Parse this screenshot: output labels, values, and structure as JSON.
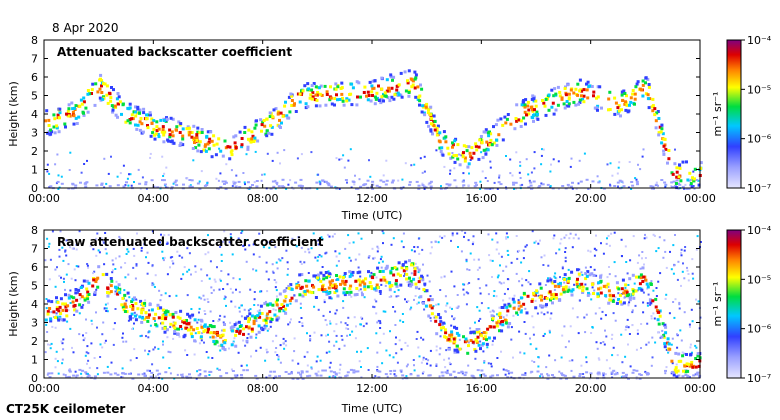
{
  "header": {
    "date": "8 Apr 2020"
  },
  "footer": {
    "instrument": "CT25K ceilometer"
  },
  "chart_data": [
    {
      "type": "heatmap",
      "title": "Attenuated backscatter coefficient",
      "xlabel": "Time (UTC)",
      "ylabel": "Height (km)",
      "xlim": [
        0,
        24
      ],
      "ylim": [
        0,
        8
      ],
      "x_tick_labels": [
        "00:00",
        "04:00",
        "08:00",
        "12:00",
        "16:00",
        "20:00",
        "00:00"
      ],
      "y_tick_labels": [
        "0",
        "1",
        "2",
        "3",
        "4",
        "5",
        "6",
        "7",
        "8"
      ],
      "colorbar": {
        "scale": "log",
        "min_exponent": -7,
        "max_exponent": -4,
        "unit_label": "m⁻¹ sr⁻¹",
        "tick_labels": [
          "10⁻⁴",
          "10⁻⁵",
          "10⁻⁶",
          "10⁻⁷"
        ]
      },
      "cloud_layer_km": [
        [
          0.0,
          3.6
        ],
        [
          1.0,
          4.0
        ],
        [
          2.0,
          5.5
        ],
        [
          3.0,
          4.0
        ],
        [
          4.0,
          3.4
        ],
        [
          5.0,
          3.0
        ],
        [
          6.0,
          2.5
        ],
        [
          6.8,
          2.2
        ],
        [
          8.6,
          4.0
        ],
        [
          9.3,
          5.0
        ],
        [
          12.0,
          5.3
        ],
        [
          13.5,
          5.8
        ],
        [
          14.5,
          2.5
        ],
        [
          15.5,
          1.8
        ],
        [
          16.5,
          3.0
        ],
        [
          17.5,
          4.2
        ],
        [
          18.5,
          4.7
        ],
        [
          19.5,
          5.3
        ],
        [
          21.0,
          4.6
        ],
        [
          22.0,
          5.5
        ],
        [
          23.0,
          0.8
        ],
        [
          24.0,
          0.8
        ]
      ],
      "noise_level": "low"
    },
    {
      "type": "heatmap",
      "title": "Raw attenuated backscatter coefficient",
      "xlabel": "Time (UTC)",
      "ylabel": "Height (km)",
      "xlim": [
        0,
        24
      ],
      "ylim": [
        0,
        8
      ],
      "x_tick_labels": [
        "00:00",
        "04:00",
        "08:00",
        "12:00",
        "16:00",
        "20:00",
        "00:00"
      ],
      "y_tick_labels": [
        "0",
        "1",
        "2",
        "3",
        "4",
        "5",
        "6",
        "7",
        "8"
      ],
      "colorbar": {
        "scale": "log",
        "min_exponent": -7,
        "max_exponent": -4,
        "unit_label": "m⁻¹ sr⁻¹",
        "tick_labels": [
          "10⁻⁴",
          "10⁻⁵",
          "10⁻⁶",
          "10⁻⁷"
        ]
      },
      "cloud_layer_km": [
        [
          0.0,
          3.6
        ],
        [
          1.0,
          4.0
        ],
        [
          2.0,
          5.5
        ],
        [
          3.0,
          4.0
        ],
        [
          4.0,
          3.4
        ],
        [
          5.0,
          3.0
        ],
        [
          6.0,
          2.5
        ],
        [
          6.8,
          2.2
        ],
        [
          8.6,
          4.0
        ],
        [
          9.3,
          5.0
        ],
        [
          12.0,
          5.3
        ],
        [
          13.5,
          5.8
        ],
        [
          14.5,
          2.5
        ],
        [
          15.5,
          1.8
        ],
        [
          16.5,
          3.0
        ],
        [
          17.5,
          4.2
        ],
        [
          18.5,
          4.7
        ],
        [
          19.5,
          5.3
        ],
        [
          21.0,
          4.6
        ],
        [
          22.0,
          5.5
        ],
        [
          23.0,
          0.8
        ],
        [
          24.0,
          0.8
        ]
      ],
      "noise_level": "high"
    }
  ]
}
